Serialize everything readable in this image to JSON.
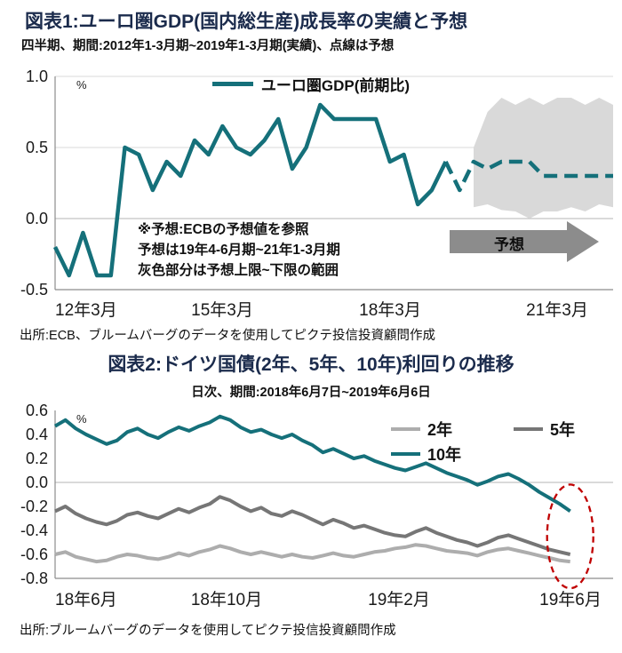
{
  "colors": {
    "teal": "#15707a",
    "band_gray": "#d9d9d9",
    "gray_light": "#adadad",
    "gray_dark": "#767676",
    "red": "#c00000",
    "grid": "#d8d8d8",
    "grid_zero": "#b5b5b5",
    "axis": "#8c8c8c",
    "arrow": "#8c8c8c",
    "title_navy": "#1b2b4c"
  },
  "chart_data": [
    {
      "type": "line",
      "title": "図表1:ユーロ圏GDP(国内総生産)成長率の実績と予想",
      "subtitle": "四半期、期間:2012年1-3月期~2019年1-3月期(実績)、点線は予想",
      "unit_label": "%",
      "legend_label": "ユーロ圏GDP(前期比)",
      "x_axis": {
        "unit": "quarter_from_2012Q1",
        "domain": [
          0,
          40
        ],
        "tick_positions": [
          0,
          12,
          24,
          36
        ]
      },
      "x_tick_labels": [
        "12年3月",
        "15年3月",
        "18年3月",
        "21年3月"
      ],
      "ylim": [
        -0.5,
        1.0
      ],
      "y_ticks": [
        "1.0",
        "0.5",
        "0.0",
        "-0.5"
      ],
      "grid": "all",
      "legend_position": "top-center",
      "series": [
        {
          "name": "ユーロ圏GDP(前期比)実績",
          "color": "#15707a",
          "width": 4.5,
          "dashed": false,
          "x_start": 0,
          "x_step": 1,
          "values": [
            -0.2,
            -0.4,
            -0.1,
            -0.4,
            -0.4,
            0.5,
            0.45,
            0.2,
            0.4,
            0.3,
            0.55,
            0.45,
            0.65,
            0.5,
            0.45,
            0.55,
            0.7,
            0.35,
            0.5,
            0.8,
            0.7,
            0.7,
            0.7,
            0.7,
            0.4,
            0.45,
            0.1,
            0.2,
            0.4
          ]
        },
        {
          "name": "ユーロ圏GDP(前期比)予想(点線)",
          "color": "#15707a",
          "width": 4.5,
          "dashed": true,
          "x_start": 28,
          "x_step": 1,
          "values": [
            0.4,
            0.2,
            0.4,
            0.35,
            0.4,
            0.4,
            0.4,
            0.3,
            0.3,
            0.3,
            0.3,
            0.3,
            0.3
          ]
        }
      ],
      "band": {
        "label": "予想上限~下限の範囲",
        "color": "#d9d9d9",
        "x_start": 30,
        "x_step": 1,
        "upper": [
          0.5,
          0.75,
          0.85,
          0.8,
          0.85,
          0.8,
          0.85,
          0.85,
          0.8,
          0.85,
          0.8
        ],
        "lower": [
          0.08,
          0.1,
          0.06,
          0.05,
          0.0,
          0.05,
          0.05,
          0.08,
          0.05,
          0.1,
          0.08
        ]
      },
      "annotation": [
        "※予想:ECBの予想値を参照",
        "予想は19年4-6月期~21年1-3月期",
        "灰色部分は予想上限~下限の範囲"
      ],
      "forecast_arrow": true,
      "forecast_arrow_label": "予想",
      "source": "出所:ECB、ブルームバーグのデータを使用してピクテ投信投資顧問作成"
    },
    {
      "type": "line",
      "title": "図表2:ドイツ国債(2年、5年、10年)利回りの推移",
      "subtitle": "日次、期間:2018年6月7日~2019年6月6日",
      "unit_label": "%",
      "x_axis": {
        "unit": "month_from_2018-06",
        "domain": [
          0,
          13
        ],
        "tick_positions": [
          0,
          4,
          8,
          12
        ]
      },
      "x_tick_labels": [
        "18年6月",
        "18年10月",
        "19年2月",
        "19年6月"
      ],
      "ylim": [
        -0.8,
        0.6
      ],
      "y_ticks": [
        "0.6",
        "0.4",
        "0.2",
        "0.0",
        "-0.2",
        "-0.4",
        "-0.6",
        "-0.8"
      ],
      "grid": "zero-only",
      "legend_position": "top-right",
      "series": [
        {
          "name": "2年",
          "color": "#adadad",
          "width": 4,
          "dashed": false,
          "x_start": 0,
          "x_step": 0.24,
          "values": [
            -0.6,
            -0.58,
            -0.62,
            -0.64,
            -0.66,
            -0.65,
            -0.62,
            -0.6,
            -0.61,
            -0.63,
            -0.64,
            -0.62,
            -0.59,
            -0.61,
            -0.58,
            -0.56,
            -0.53,
            -0.55,
            -0.58,
            -0.6,
            -0.58,
            -0.6,
            -0.62,
            -0.6,
            -0.62,
            -0.63,
            -0.61,
            -0.59,
            -0.61,
            -0.62,
            -0.6,
            -0.58,
            -0.57,
            -0.55,
            -0.54,
            -0.52,
            -0.53,
            -0.55,
            -0.57,
            -0.58,
            -0.59,
            -0.61,
            -0.58,
            -0.56,
            -0.55,
            -0.57,
            -0.59,
            -0.61,
            -0.63,
            -0.65,
            -0.66
          ]
        },
        {
          "name": "5年",
          "color": "#767676",
          "width": 4,
          "dashed": false,
          "x_start": 0,
          "x_step": 0.24,
          "values": [
            -0.24,
            -0.2,
            -0.26,
            -0.3,
            -0.33,
            -0.35,
            -0.32,
            -0.27,
            -0.25,
            -0.28,
            -0.3,
            -0.26,
            -0.22,
            -0.25,
            -0.21,
            -0.18,
            -0.12,
            -0.15,
            -0.2,
            -0.24,
            -0.21,
            -0.26,
            -0.28,
            -0.24,
            -0.27,
            -0.31,
            -0.35,
            -0.31,
            -0.34,
            -0.38,
            -0.36,
            -0.39,
            -0.42,
            -0.44,
            -0.45,
            -0.41,
            -0.38,
            -0.42,
            -0.45,
            -0.48,
            -0.5,
            -0.53,
            -0.5,
            -0.46,
            -0.44,
            -0.47,
            -0.5,
            -0.53,
            -0.56,
            -0.58,
            -0.6
          ]
        },
        {
          "name": "10年",
          "color": "#15707a",
          "width": 4,
          "dashed": false,
          "x_start": 0,
          "x_step": 0.24,
          "values": [
            0.47,
            0.52,
            0.45,
            0.4,
            0.36,
            0.32,
            0.35,
            0.42,
            0.45,
            0.4,
            0.37,
            0.42,
            0.46,
            0.43,
            0.47,
            0.5,
            0.55,
            0.52,
            0.46,
            0.42,
            0.44,
            0.4,
            0.37,
            0.4,
            0.35,
            0.31,
            0.25,
            0.28,
            0.24,
            0.2,
            0.22,
            0.18,
            0.15,
            0.12,
            0.1,
            0.13,
            0.16,
            0.12,
            0.08,
            0.05,
            0.02,
            -0.02,
            0.01,
            0.05,
            0.07,
            0.03,
            -0.02,
            -0.08,
            -0.13,
            -0.18,
            -0.24
          ]
        }
      ],
      "highlight_ellipse": true,
      "highlight_color": "#c00000",
      "source": "出所:ブルームバーグのデータを使用してピクテ投信投資顧問作成"
    }
  ]
}
